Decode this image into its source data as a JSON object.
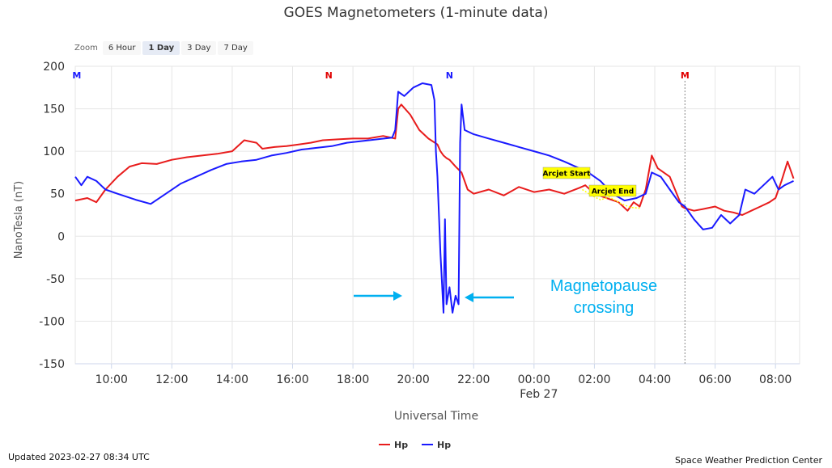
{
  "title": "GOES Magnetometers (1-minute data)",
  "zoom": {
    "label": "Zoom",
    "buttons": [
      "6 Hour",
      "1 Day",
      "3 Day",
      "7 Day"
    ],
    "active": "1 Day"
  },
  "footer": {
    "updated": "Updated 2023-02-27 08:34 UTC",
    "credit": "Space Weather Prediction Center"
  },
  "annotation": {
    "line1": "Magnetopause",
    "line2": "crossing",
    "color": "#00b0f0"
  },
  "chart_data": {
    "type": "line",
    "xlabel": "Universal Time",
    "ylabel": "NanoTesla (nT)",
    "ylim": [
      -150,
      200
    ],
    "yticks": [
      200,
      150,
      100,
      50,
      0,
      -50,
      -100,
      -150
    ],
    "xlim": [
      8.8,
      32.8
    ],
    "xticks": [
      {
        "h": 10,
        "label": "10:00"
      },
      {
        "h": 12,
        "label": "12:00"
      },
      {
        "h": 14,
        "label": "14:00"
      },
      {
        "h": 16,
        "label": "16:00"
      },
      {
        "h": 18,
        "label": "18:00"
      },
      {
        "h": 20,
        "label": "20:00"
      },
      {
        "h": 22,
        "label": "22:00"
      },
      {
        "h": 24,
        "label": "00:00",
        "sub": "Feb 27"
      },
      {
        "h": 26,
        "label": "02:00"
      },
      {
        "h": 28,
        "label": "04:00"
      },
      {
        "h": 30,
        "label": "06:00"
      },
      {
        "h": 32,
        "label": "08:00"
      }
    ],
    "grid": true,
    "legend_position": "bottom-center",
    "markers": [
      {
        "h": 8.85,
        "label": "M",
        "color": "#1a1aff"
      },
      {
        "h": 17.2,
        "label": "N",
        "color": "#e00000"
      },
      {
        "h": 21.2,
        "label": "N",
        "color": "#1a1aff"
      },
      {
        "h": 29.0,
        "label": "M",
        "color": "#e00000"
      }
    ],
    "arcjet": {
      "start_label": "Arcjet Start",
      "end_label": "Arcjet End",
      "color": "#ffff00",
      "x": [
        25.6,
        25.9,
        26.2,
        26.5,
        26.9,
        27.2,
        27.5
      ],
      "y": [
        55,
        48,
        43,
        46,
        38,
        34,
        33
      ]
    },
    "series": [
      {
        "name": "Hp",
        "color": "#e81c1c",
        "x": [
          8.8,
          9.2,
          9.5,
          9.8,
          10.2,
          10.6,
          11.0,
          11.5,
          12.0,
          12.5,
          13.0,
          13.5,
          14.0,
          14.4,
          14.8,
          15.0,
          15.4,
          15.8,
          16.2,
          16.6,
          17.0,
          17.5,
          18.0,
          18.5,
          19.0,
          19.4,
          19.5,
          19.6,
          19.9,
          20.2,
          20.5,
          20.8,
          20.9,
          21.0,
          21.1,
          21.2,
          21.4,
          21.6,
          21.8,
          22.0,
          22.5,
          23.0,
          23.5,
          24.0,
          24.5,
          25.0,
          25.5,
          25.7,
          26.0,
          26.4,
          26.8,
          27.1,
          27.3,
          27.5,
          27.7,
          27.9,
          28.1,
          28.5,
          28.9,
          29.0,
          29.3,
          29.6,
          30.0,
          30.3,
          30.6,
          30.9,
          31.2,
          31.5,
          31.8,
          32.0,
          32.2,
          32.4,
          32.6
        ],
        "y": [
          42,
          45,
          40,
          55,
          70,
          82,
          86,
          85,
          90,
          93,
          95,
          97,
          100,
          113,
          110,
          103,
          105,
          106,
          108,
          110,
          113,
          114,
          115,
          115,
          118,
          115,
          150,
          155,
          143,
          125,
          115,
          108,
          100,
          95,
          92,
          90,
          82,
          75,
          55,
          50,
          55,
          48,
          58,
          52,
          55,
          50,
          57,
          60,
          50,
          45,
          40,
          30,
          40,
          35,
          55,
          95,
          80,
          70,
          35,
          33,
          30,
          32,
          35,
          30,
          28,
          25,
          30,
          35,
          40,
          45,
          65,
          88,
          68
        ]
      },
      {
        "name": "Hp",
        "color": "#1a1aff",
        "x": [
          8.8,
          9.0,
          9.2,
          9.5,
          9.8,
          10.2,
          10.8,
          11.3,
          11.8,
          12.3,
          12.8,
          13.3,
          13.8,
          14.3,
          14.8,
          15.3,
          15.8,
          16.3,
          16.8,
          17.3,
          17.8,
          18.3,
          18.8,
          19.3,
          19.4,
          19.5,
          19.7,
          20.0,
          20.3,
          20.6,
          20.7,
          20.75,
          20.8,
          20.9,
          21.0,
          21.05,
          21.1,
          21.2,
          21.3,
          21.4,
          21.5,
          21.55,
          21.6,
          21.7,
          22.0,
          22.5,
          23.0,
          23.5,
          24.0,
          24.5,
          25.0,
          25.5,
          25.8,
          26.2,
          26.6,
          27.0,
          27.4,
          27.7,
          27.9,
          28.2,
          28.5,
          28.8,
          29.0,
          29.3,
          29.6,
          29.9,
          30.2,
          30.5,
          30.8,
          31.0,
          31.3,
          31.6,
          31.9,
          32.1,
          32.3,
          32.6
        ],
        "y": [
          70,
          60,
          70,
          65,
          55,
          50,
          43,
          38,
          50,
          62,
          70,
          78,
          85,
          88,
          90,
          95,
          98,
          102,
          104,
          106,
          110,
          112,
          114,
          116,
          125,
          170,
          165,
          175,
          180,
          178,
          160,
          100,
          70,
          -20,
          -90,
          20,
          -80,
          -60,
          -90,
          -70,
          -80,
          110,
          155,
          125,
          120,
          115,
          110,
          105,
          100,
          95,
          88,
          80,
          75,
          65,
          50,
          42,
          45,
          50,
          75,
          70,
          55,
          40,
          35,
          20,
          8,
          10,
          25,
          15,
          25,
          55,
          50,
          60,
          70,
          55,
          60,
          65
        ]
      }
    ]
  }
}
